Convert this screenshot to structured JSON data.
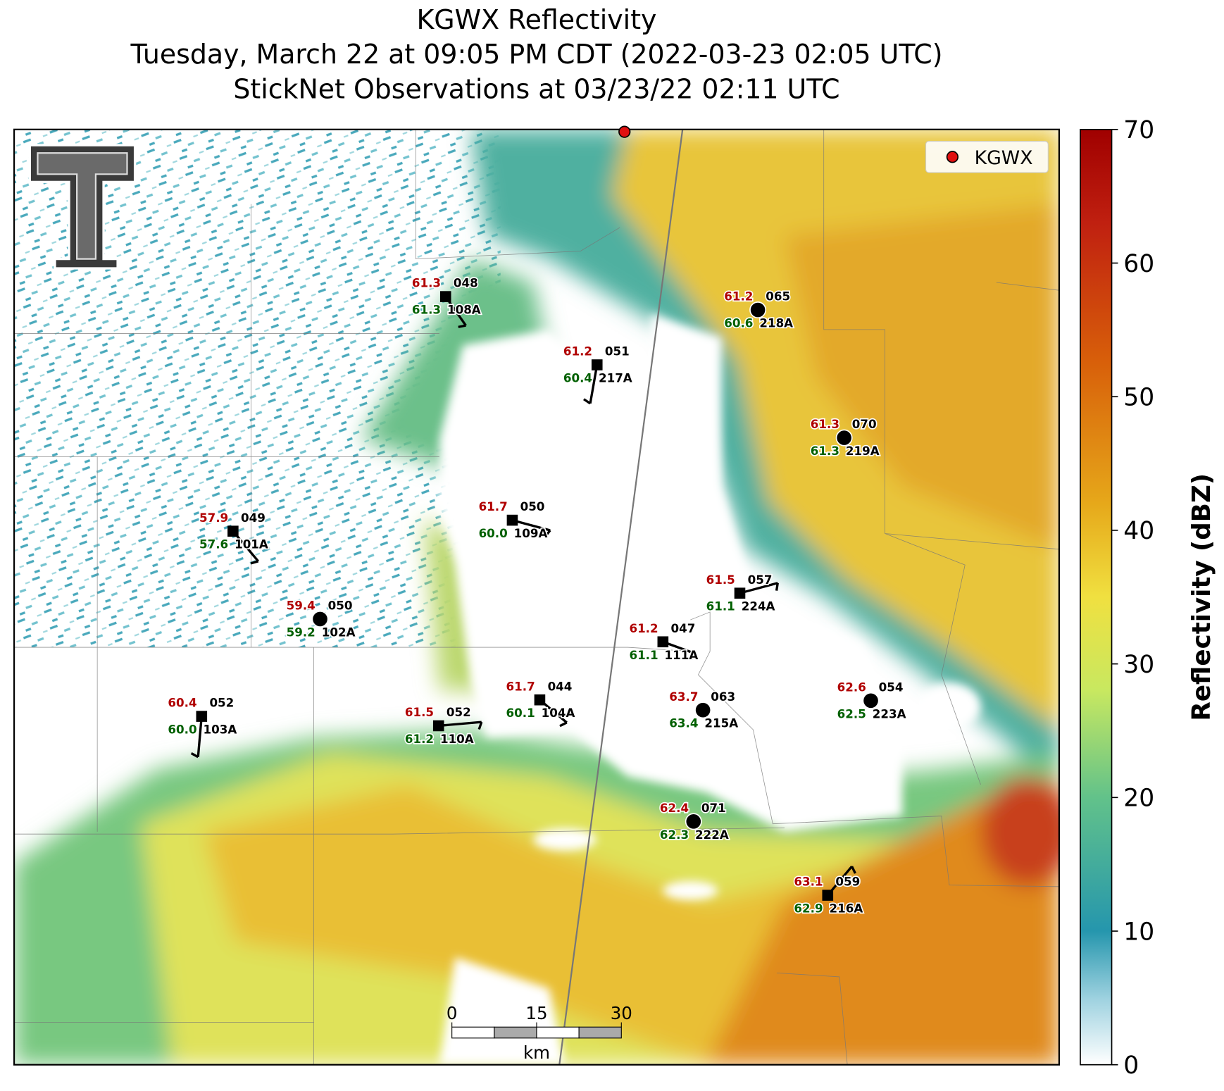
{
  "title": {
    "lines": [
      "KGWX Reflectivity",
      "Tuesday, March 22 at 09:05 PM CDT (2022-03-23 02:05 UTC)",
      "StickNet Observations at 03/23/22 02:11 UTC"
    ]
  },
  "legend": {
    "label": "KGWX"
  },
  "colorbar": {
    "label": "Reflectivity (dBZ)",
    "lim": [
      0,
      70
    ],
    "ticks": [
      0,
      10,
      20,
      30,
      40,
      50,
      60,
      70
    ]
  },
  "scale_bar": {
    "ticks": [
      0,
      15,
      30
    ],
    "unit": "km"
  },
  "stations": [
    {
      "temperature": "61.3",
      "dewpoint": "61.3",
      "pressure": "048",
      "id": "108A"
    },
    {
      "temperature": "61.2",
      "dewpoint": "60.6",
      "pressure": "065",
      "id": "218A"
    },
    {
      "temperature": "61.2",
      "dewpoint": "60.4",
      "pressure": "051",
      "id": "217A"
    },
    {
      "temperature": "61.3",
      "dewpoint": "61.3",
      "pressure": "070",
      "id": "219A"
    },
    {
      "temperature": "57.9",
      "dewpoint": "57.6",
      "pressure": "049",
      "id": "101A"
    },
    {
      "temperature": "61.7",
      "dewpoint": "60.0",
      "pressure": "050",
      "id": "109A"
    },
    {
      "temperature": "61.5",
      "dewpoint": "61.1",
      "pressure": "057",
      "id": "224A"
    },
    {
      "temperature": "59.4",
      "dewpoint": "59.2",
      "pressure": "050",
      "id": "102A"
    },
    {
      "temperature": "61.2",
      "dewpoint": "61.1",
      "pressure": "047",
      "id": "111A"
    },
    {
      "temperature": "60.4",
      "dewpoint": "60.0",
      "pressure": "052",
      "id": "103A"
    },
    {
      "temperature": "61.7",
      "dewpoint": "60.1",
      "pressure": "044",
      "id": "104A"
    },
    {
      "temperature": "61.5",
      "dewpoint": "61.2",
      "pressure": "052",
      "id": "110A"
    },
    {
      "temperature": "63.7",
      "dewpoint": "63.4",
      "pressure": "063",
      "id": "215A"
    },
    {
      "temperature": "62.6",
      "dewpoint": "62.5",
      "pressure": "054",
      "id": "223A"
    },
    {
      "temperature": "62.4",
      "dewpoint": "62.3",
      "pressure": "071",
      "id": "222A"
    },
    {
      "temperature": "63.1",
      "dewpoint": "62.9",
      "pressure": "059",
      "id": "216A"
    }
  ]
}
